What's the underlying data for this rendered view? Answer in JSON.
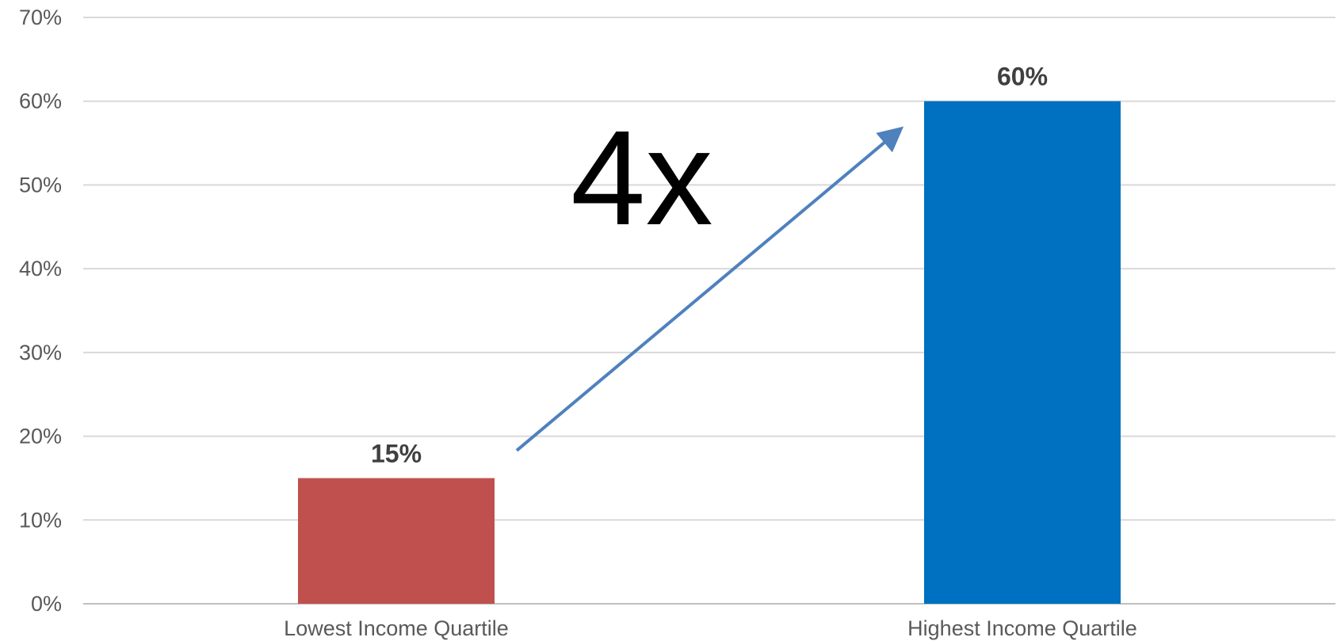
{
  "chart_data": {
    "type": "bar",
    "categories": [
      "Lowest Income Quartile",
      "Highest Income Quartile"
    ],
    "values": [
      15,
      60
    ],
    "value_labels": [
      "15%",
      "60%"
    ],
    "bar_colors": [
      "#C0504D",
      "#0070C0"
    ],
    "ylim": [
      0,
      70
    ],
    "yticks": [
      0,
      10,
      20,
      30,
      40,
      50,
      60,
      70
    ],
    "ytick_labels": [
      "0%",
      "10%",
      "20%",
      "30%",
      "40%",
      "50%",
      "60%",
      "70%"
    ],
    "grid": true,
    "gridline_color": "#D9D9D9",
    "annotation": {
      "text": "4x",
      "arrow_color": "#4F81BD"
    }
  }
}
